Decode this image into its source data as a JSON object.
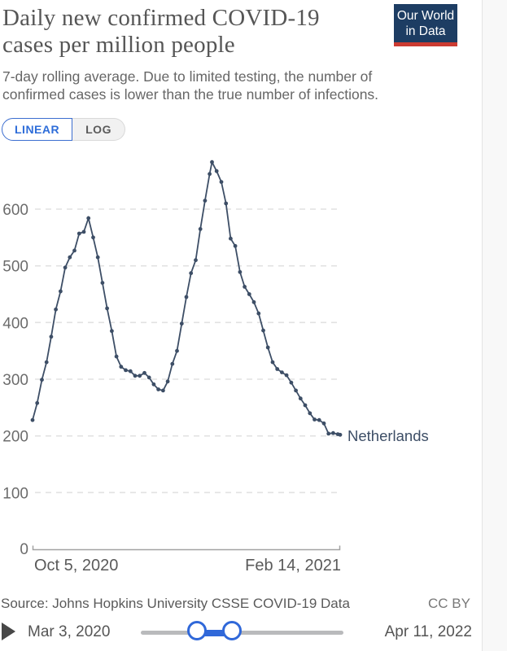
{
  "header": {
    "title_line1": "Daily new confirmed COVID-19",
    "title_line2": "cases per million people",
    "subtitle": "7-day rolling average. Due to limited testing, the number of confirmed cases is lower than the true number of infections.",
    "logo": {
      "line1": "Our World",
      "line2": "in Data",
      "bg_color": "#1d3d63",
      "accent_color": "#cc3b32"
    }
  },
  "controls": {
    "scale_toggle": [
      {
        "label": "LINEAR",
        "active": true
      },
      {
        "label": "LOG",
        "active": false
      }
    ]
  },
  "chart_data": {
    "type": "line",
    "title": "Daily new confirmed COVID-19 cases per million people",
    "subtitle": "7-day rolling average.",
    "grid": true,
    "legend_position": "end-of-line",
    "x": {
      "start_label": "Oct 5, 2020",
      "end_label": "Feb 14, 2021",
      "start_date": "2020-10-05",
      "end_date": "2021-02-14",
      "total_days": 132
    },
    "y": {
      "ticks": [
        600,
        500,
        400,
        300,
        200,
        100,
        0
      ],
      "ylim": [
        0,
        700
      ]
    },
    "series": [
      {
        "name": "Netherlands",
        "color": "#3d4e66",
        "points": [
          [
            "2020-10-05",
            228
          ],
          [
            "2020-10-07",
            258
          ],
          [
            "2020-10-09",
            299
          ],
          [
            "2020-10-11",
            330
          ],
          [
            "2020-10-13",
            375
          ],
          [
            "2020-10-15",
            423
          ],
          [
            "2020-10-17",
            455
          ],
          [
            "2020-10-19",
            497
          ],
          [
            "2020-10-21",
            515
          ],
          [
            "2020-10-23",
            527
          ],
          [
            "2020-10-25",
            557
          ],
          [
            "2020-10-27",
            560
          ],
          [
            "2020-10-29",
            584
          ],
          [
            "2020-10-31",
            550
          ],
          [
            "2020-11-02",
            515
          ],
          [
            "2020-11-04",
            470
          ],
          [
            "2020-11-06",
            425
          ],
          [
            "2020-11-08",
            385
          ],
          [
            "2020-11-10",
            340
          ],
          [
            "2020-11-12",
            322
          ],
          [
            "2020-11-14",
            316
          ],
          [
            "2020-11-16",
            314
          ],
          [
            "2020-11-18",
            306
          ],
          [
            "2020-11-20",
            306
          ],
          [
            "2020-11-22",
            311
          ],
          [
            "2020-11-24",
            303
          ],
          [
            "2020-11-26",
            291
          ],
          [
            "2020-11-28",
            282
          ],
          [
            "2020-11-30",
            280
          ],
          [
            "2020-12-02",
            296
          ],
          [
            "2020-12-04",
            327
          ],
          [
            "2020-12-06",
            350
          ],
          [
            "2020-12-08",
            398
          ],
          [
            "2020-12-10",
            445
          ],
          [
            "2020-12-12",
            487
          ],
          [
            "2020-12-14",
            510
          ],
          [
            "2020-12-16",
            565
          ],
          [
            "2020-12-18",
            615
          ],
          [
            "2020-12-20",
            662
          ],
          [
            "2020-12-21",
            683
          ],
          [
            "2020-12-23",
            667
          ],
          [
            "2020-12-25",
            648
          ],
          [
            "2020-12-27",
            610
          ],
          [
            "2020-12-29",
            548
          ],
          [
            "2020-12-31",
            535
          ],
          [
            "2021-01-02",
            489
          ],
          [
            "2021-01-04",
            463
          ],
          [
            "2021-01-06",
            450
          ],
          [
            "2021-01-08",
            436
          ],
          [
            "2021-01-10",
            416
          ],
          [
            "2021-01-12",
            386
          ],
          [
            "2021-01-14",
            356
          ],
          [
            "2021-01-16",
            330
          ],
          [
            "2021-01-18",
            318
          ],
          [
            "2021-01-20",
            312
          ],
          [
            "2021-01-22",
            307
          ],
          [
            "2021-01-24",
            294
          ],
          [
            "2021-01-26",
            280
          ],
          [
            "2021-01-28",
            266
          ],
          [
            "2021-01-30",
            254
          ],
          [
            "2021-02-01",
            240
          ],
          [
            "2021-02-03",
            229
          ],
          [
            "2021-02-05",
            228
          ],
          [
            "2021-02-07",
            222
          ],
          [
            "2021-02-09",
            204
          ],
          [
            "2021-02-11",
            205
          ],
          [
            "2021-02-13",
            203
          ],
          [
            "2021-02-14",
            202
          ]
        ]
      }
    ],
    "colors": {
      "grid": "#e2e2e2",
      "axis": "#a2a2a2",
      "tick_text": "#6c6c6c"
    }
  },
  "footer": {
    "source": "Source: Johns Hopkins University CSSE COVID-19 Data",
    "license": "CC BY"
  },
  "timeline": {
    "start_label": "Mar 3, 2020",
    "end_label": "Apr 11, 2022",
    "accent": "#3068d9"
  }
}
